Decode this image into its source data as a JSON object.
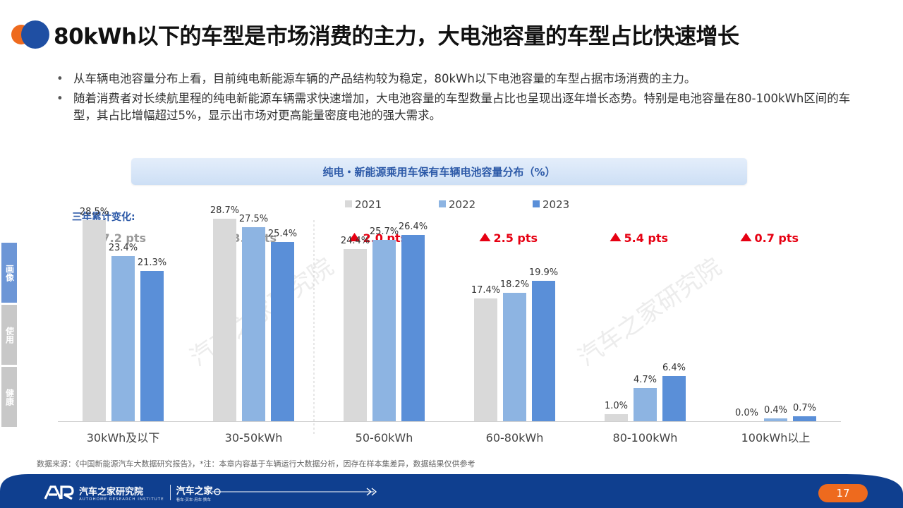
{
  "title": "80kWh以下的车型是市场消费的主力，大电池容量的车型占比快速增长",
  "bullets": [
    "从车辆电池容量分布上看，目前纯电新能源车辆的产品结构较为稳定，80kWh以下电池容量的车型占据市场消费的主力。",
    "随着消费者对长续航里程的纯电新能源车辆需求快速增加，大电池容量的车型数量占比也呈现出逐年增长态势。特别是电池容量在80-100kWh区间的车型，其占比增幅超过5%，显示出市场对更高能量密度电池的强大需求。"
  ],
  "bullet_symbol": "•",
  "side_tabs": [
    "画像",
    "使用",
    "健康"
  ],
  "chart_title": "纯电・新能源乘用车保有车辆电池容量分布（%）",
  "change_label": "三年累计变化:",
  "watermark": "汽车之家研究院",
  "chart_data": {
    "type": "bar",
    "title": "纯电・新能源乘用车保有车辆电池容量分布（%）",
    "categories": [
      "30kWh及以下",
      "30-50kWh",
      "50-60kWh",
      "60-80kWh",
      "80-100kWh",
      "100kWh以上"
    ],
    "series": [
      {
        "name": "2021",
        "values": [
          28.5,
          28.7,
          24.4,
          17.4,
          1.0,
          0.0
        ],
        "labels": [
          "28.5%",
          "28.7%",
          "24.4%",
          "17.4%",
          "1.0%",
          "0.0%"
        ],
        "color": "#d9d9d9"
      },
      {
        "name": "2022",
        "values": [
          23.4,
          27.5,
          25.7,
          18.2,
          4.7,
          0.4
        ],
        "labels": [
          "23.4%",
          "27.5%",
          "25.7%",
          "18.2%",
          "4.7%",
          "0.4%"
        ],
        "color": "#8db4e2"
      },
      {
        "name": "2023",
        "values": [
          21.3,
          25.4,
          26.4,
          19.9,
          6.4,
          0.7
        ],
        "labels": [
          "21.3%",
          "25.4%",
          "26.4%",
          "19.9%",
          "6.4%",
          "0.7%"
        ],
        "color": "#5a8fd8"
      }
    ],
    "changes": [
      {
        "direction": "down",
        "text": "7.2 pts"
      },
      {
        "direction": "down",
        "text": "3.3 pts"
      },
      {
        "direction": "up",
        "text": "2.0 pts"
      },
      {
        "direction": "up",
        "text": "2.5 pts"
      },
      {
        "direction": "up",
        "text": "5.4 pts"
      },
      {
        "direction": "up",
        "text": "0.7 pts"
      }
    ],
    "change_colors": {
      "down": "#999999",
      "up": "#e60012"
    },
    "ylim": [
      0,
      30
    ],
    "legend_position": "top-center",
    "grid": false,
    "divider_after_category": 1
  },
  "source_text": "数据来源：《中国新能源汽车大数据研究报告》，*注：本章内容基于车辆运行大数据分析，因存在样本集差异，数据结果仅供参考",
  "footer": {
    "brand_name": "汽车之家研究院",
    "brand_sub": "AUTOHOME RESEARCH INSTITUTE",
    "brand2_name": "汽车之家",
    "brand2_sub": "看车·买车·用车·换车",
    "page_number": "17",
    "band_color": "#0f3f8f"
  },
  "colors": {
    "accent_orange": "#ee6a1e",
    "accent_blue": "#1f4fa3"
  }
}
